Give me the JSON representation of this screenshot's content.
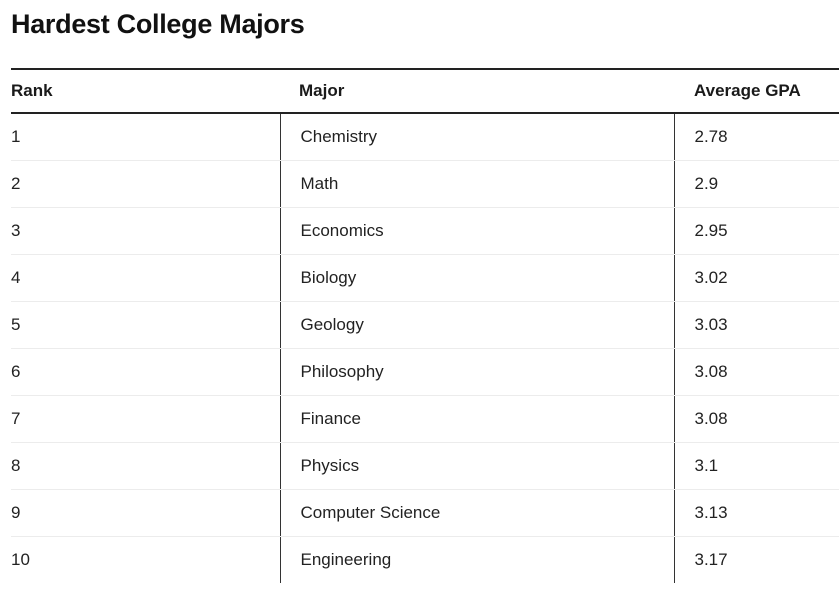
{
  "chart_data": {
    "type": "table",
    "title": "Hardest College Majors",
    "columns": [
      "Rank",
      "Major",
      "Average GPA"
    ],
    "rows": [
      [
        "1",
        "Chemistry",
        "2.78"
      ],
      [
        "2",
        "Math",
        "2.9"
      ],
      [
        "3",
        "Economics",
        "2.95"
      ],
      [
        "4",
        "Biology",
        "3.02"
      ],
      [
        "5",
        "Geology",
        "3.03"
      ],
      [
        "6",
        "Philosophy",
        "3.08"
      ],
      [
        "7",
        "Finance",
        "3.08"
      ],
      [
        "8",
        "Physics",
        "3.1"
      ],
      [
        "9",
        "Computer Science",
        "3.13"
      ],
      [
        "10",
        "Engineering",
        "3.17"
      ]
    ]
  }
}
